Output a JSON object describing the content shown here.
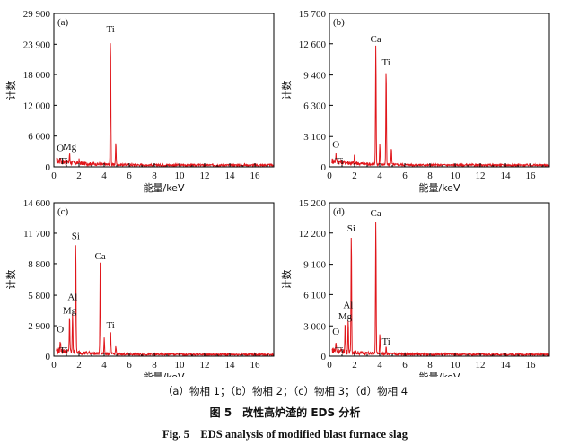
{
  "caption": {
    "subcaption": "（a）物相 1；（b）物相 2；（c）物相 3；（d）物相 4",
    "figure_cn": "图 5　改性高炉渣的 EDS 分析",
    "figure_en": "Fig. 5　EDS analysis of modified blast furnace slag"
  },
  "colors": {
    "spectrum": "#e0161b",
    "axis": "#000000"
  },
  "chart_data": [
    {
      "type": "line",
      "panel_label": "(a)",
      "xlabel": "能量/keV",
      "ylabel": "计数",
      "xlim": [
        0,
        17.5
      ],
      "ylim": [
        0,
        29900
      ],
      "xticks": [
        0,
        2,
        4,
        6,
        8,
        10,
        12,
        14,
        16
      ],
      "yticks": [
        0,
        6000,
        12000,
        18000,
        23900,
        29900
      ],
      "ytick_labels": [
        "0",
        "6 000",
        "12 000",
        "18 000",
        "23 900",
        "29 900"
      ],
      "peaks": [
        {
          "x": 0.52,
          "y": 900
        },
        {
          "x": 1.25,
          "y": 1700
        },
        {
          "x": 2.0,
          "y": 600
        },
        {
          "x": 4.51,
          "y": 25500
        },
        {
          "x": 4.93,
          "y": 4300
        }
      ],
      "annotations": [
        {
          "text": "Ti",
          "x": 4.51,
          "y": 25500
        },
        {
          "text": "O",
          "x": 0.52,
          "y": 2400
        },
        {
          "text": "Mg",
          "x": 1.25,
          "y": 2600
        },
        {
          "text": "Ti",
          "x": 0.45,
          "y": 0
        }
      ]
    },
    {
      "type": "line",
      "panel_label": "(b)",
      "xlabel": "能量/keV",
      "ylabel": "计数",
      "xlim": [
        0,
        17.5
      ],
      "ylim": [
        0,
        15700
      ],
      "xticks": [
        0,
        2,
        4,
        6,
        8,
        10,
        12,
        14,
        16
      ],
      "yticks": [
        0,
        3100,
        6300,
        9400,
        12600,
        15700
      ],
      "ytick_labels": [
        "0",
        "3 100",
        "6 300",
        "9 400",
        "12 600",
        "15 700"
      ],
      "peaks": [
        {
          "x": 0.52,
          "y": 800
        },
        {
          "x": 2.0,
          "y": 900
        },
        {
          "x": 3.69,
          "y": 12400
        },
        {
          "x": 4.01,
          "y": 2100
        },
        {
          "x": 4.51,
          "y": 10000
        },
        {
          "x": 4.93,
          "y": 1800
        }
      ],
      "annotations": [
        {
          "text": "Ca",
          "x": 3.69,
          "y": 12400
        },
        {
          "text": "Ti",
          "x": 4.51,
          "y": 10000
        },
        {
          "text": "O",
          "x": 0.52,
          "y": 1600
        },
        {
          "text": "Ti",
          "x": 0.45,
          "y": 0
        }
      ]
    },
    {
      "type": "line",
      "panel_label": "(c)",
      "xlabel": "能量/keV",
      "ylabel": "计数",
      "xlim": [
        0,
        17.5
      ],
      "ylim": [
        0,
        14600
      ],
      "xticks": [
        0,
        2,
        4,
        6,
        8,
        10,
        12,
        14,
        16
      ],
      "yticks": [
        0,
        2900,
        5800,
        8800,
        11700,
        14600
      ],
      "ytick_labels": [
        "0",
        "2 900",
        "5 800",
        "8 800",
        "11 700",
        "14 600"
      ],
      "peaks": [
        {
          "x": 0.52,
          "y": 900
        },
        {
          "x": 1.25,
          "y": 3500
        },
        {
          "x": 1.49,
          "y": 3800
        },
        {
          "x": 1.74,
          "y": 10800
        },
        {
          "x": 3.69,
          "y": 8900
        },
        {
          "x": 4.01,
          "y": 1600
        },
        {
          "x": 4.51,
          "y": 2300
        },
        {
          "x": 4.93,
          "y": 800
        }
      ],
      "annotations": [
        {
          "text": "Si",
          "x": 1.74,
          "y": 10800
        },
        {
          "text": "Ca",
          "x": 3.69,
          "y": 8900
        },
        {
          "text": "Al",
          "x": 1.49,
          "y": 5000
        },
        {
          "text": "Mg",
          "x": 1.25,
          "y": 3700
        },
        {
          "text": "Ti",
          "x": 4.51,
          "y": 2300
        },
        {
          "text": "O",
          "x": 0.52,
          "y": 1900
        },
        {
          "text": "Ti",
          "x": 0.45,
          "y": 0
        }
      ]
    },
    {
      "type": "line",
      "panel_label": "(d)",
      "xlabel": "能量/keV",
      "ylabel": "计数",
      "xlim": [
        0,
        17.5
      ],
      "ylim": [
        0,
        15200
      ],
      "xticks": [
        0,
        2,
        4,
        6,
        8,
        10,
        12,
        14,
        16
      ],
      "yticks": [
        0,
        3000,
        6100,
        9100,
        12200,
        15200
      ],
      "ytick_labels": [
        "0",
        "3 000",
        "6 100",
        "9 100",
        "12 200",
        "15 200"
      ],
      "peaks": [
        {
          "x": 0.52,
          "y": 800
        },
        {
          "x": 1.25,
          "y": 2900
        },
        {
          "x": 1.49,
          "y": 3100
        },
        {
          "x": 1.74,
          "y": 12000
        },
        {
          "x": 3.69,
          "y": 13500
        },
        {
          "x": 4.01,
          "y": 2000
        },
        {
          "x": 4.51,
          "y": 800
        }
      ],
      "annotations": [
        {
          "text": "Ca",
          "x": 3.69,
          "y": 13500
        },
        {
          "text": "Si",
          "x": 1.74,
          "y": 12000
        },
        {
          "text": "Al",
          "x": 1.49,
          "y": 4400
        },
        {
          "text": "Mg",
          "x": 1.25,
          "y": 3300
        },
        {
          "text": "O",
          "x": 0.52,
          "y": 1800
        },
        {
          "text": "Ti",
          "x": 0.45,
          "y": 0
        },
        {
          "text": "Ti",
          "x": 4.51,
          "y": 800
        }
      ]
    }
  ]
}
